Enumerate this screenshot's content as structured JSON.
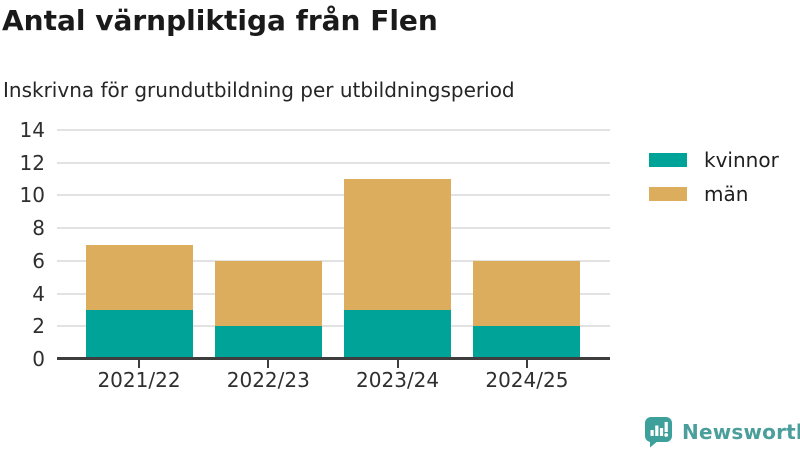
{
  "chart_data": {
    "type": "bar",
    "stacked": true,
    "title": "Antal värnpliktiga från Flen",
    "subtitle": "Inskrivna för grundutbildning per utbildningsperiod",
    "categories": [
      "2021/22",
      "2022/23",
      "2023/24",
      "2024/25"
    ],
    "series": [
      {
        "name": "kvinnor",
        "color": "#00a398",
        "values": [
          3,
          2,
          3,
          2
        ]
      },
      {
        "name": "män",
        "color": "#dbad5c",
        "values": [
          4,
          4,
          8,
          4
        ]
      }
    ],
    "ylim": [
      0,
      14
    ],
    "yticks": [
      0,
      2,
      4,
      6,
      8,
      10,
      12,
      14
    ],
    "xlabel": "",
    "ylabel": "",
    "grid": "horizontal",
    "legend_position": "right"
  },
  "colors": {
    "gridline": "#e2e2e2",
    "axis": "#3d3d3d",
    "text": "#2f2f2f",
    "title": "#1a1a1a",
    "brand_teal": "#4a9e9b",
    "logo_bubble": "#3da09a"
  },
  "branding": {
    "logo_text": "Newsworthy",
    "logo_icon": "bar-chart-speech-bubble-icon"
  }
}
